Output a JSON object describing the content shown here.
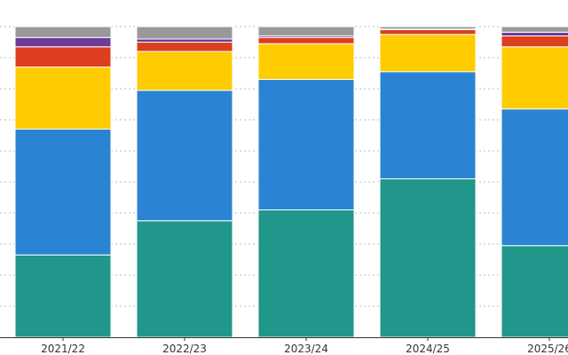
{
  "chart_data": {
    "type": "bar",
    "stacked": true,
    "categories": [
      "2021/22",
      "2022/23",
      "2023/24",
      "2024/25",
      "2025/26"
    ],
    "ylim": [
      0,
      100
    ],
    "grid": true,
    "legend": "none",
    "series": [
      {
        "color": "#21968a",
        "values": [
          26.5,
          37.5,
          41,
          51,
          29.5
        ]
      },
      {
        "color": "#2a84d3",
        "values": [
          40.5,
          42,
          42,
          34.5,
          44
        ]
      },
      {
        "color": "#ffcc00",
        "values": [
          20,
          12.5,
          11.5,
          12,
          20
        ]
      },
      {
        "color": "#dd3f1e",
        "values": [
          6.5,
          3,
          2,
          1.5,
          3.5
        ]
      },
      {
        "color": "#6e3a98",
        "values": [
          3,
          1,
          0.5,
          0.2,
          1.2
        ]
      },
      {
        "color": "#999999",
        "values": [
          3.5,
          4,
          3,
          0.8,
          1.8
        ]
      }
    ]
  }
}
